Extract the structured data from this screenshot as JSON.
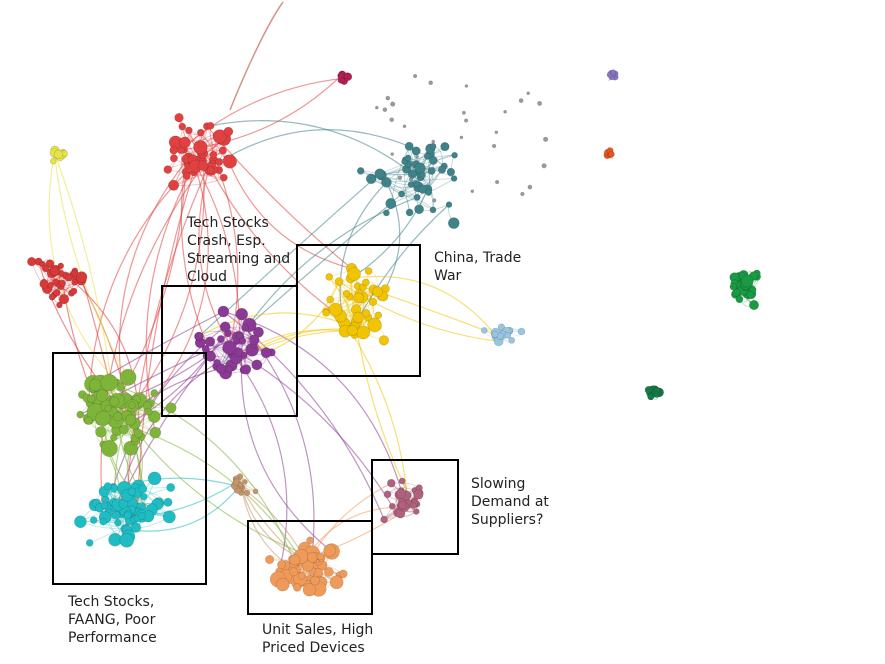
{
  "graph": {
    "clusters": [
      {
        "id": "red-top",
        "color": "#e0403f",
        "nodes": 48
      },
      {
        "id": "red-left",
        "color": "#d83a3a",
        "nodes": 34
      },
      {
        "id": "yellow-left",
        "color": "#e6e24a",
        "nodes": 12
      },
      {
        "id": "maroon-top",
        "color": "#b02050",
        "nodes": 10
      },
      {
        "id": "teal-top",
        "color": "#3f8289",
        "nodes": 46
      },
      {
        "id": "gray-scatter",
        "color": "#9a9a9a",
        "nodes": 30
      },
      {
        "id": "yellow",
        "color": "#f0c400",
        "nodes": 44
      },
      {
        "id": "purple",
        "color": "#8a3a94",
        "nodes": 42
      },
      {
        "id": "light-blue",
        "color": "#98c6e0",
        "nodes": 14
      },
      {
        "id": "green-light",
        "color": "#7fb43a",
        "nodes": 66
      },
      {
        "id": "cyan",
        "color": "#1fbcc3",
        "nodes": 64
      },
      {
        "id": "tan",
        "color": "#c4956a",
        "nodes": 14
      },
      {
        "id": "orange",
        "color": "#f09a5a",
        "nodes": 58
      },
      {
        "id": "mauve",
        "color": "#b0617e",
        "nodes": 30
      },
      {
        "id": "green-dark-1",
        "color": "#1a9a45",
        "nodes": 40
      },
      {
        "id": "green-dark-2",
        "color": "#167a45",
        "nodes": 12
      },
      {
        "id": "lavender",
        "color": "#8a76c4",
        "nodes": 7
      },
      {
        "id": "orange-red",
        "color": "#e8561e",
        "nodes": 7
      }
    ]
  },
  "annotations": [
    {
      "id": "tech-stocks-crash",
      "text": "Tech Stocks\nCrash, Esp.\nStreaming and\nCloud"
    },
    {
      "id": "china-trade-war",
      "text": "China, Trade\nWar"
    },
    {
      "id": "slowing-demand",
      "text": "Slowing\nDemand at\nSuppliers?"
    },
    {
      "id": "faang",
      "text": "Tech Stocks,\nFAANG, Poor\nPerformance"
    },
    {
      "id": "unit-sales",
      "text": "Unit Sales, High\nPriced Devices"
    }
  ]
}
